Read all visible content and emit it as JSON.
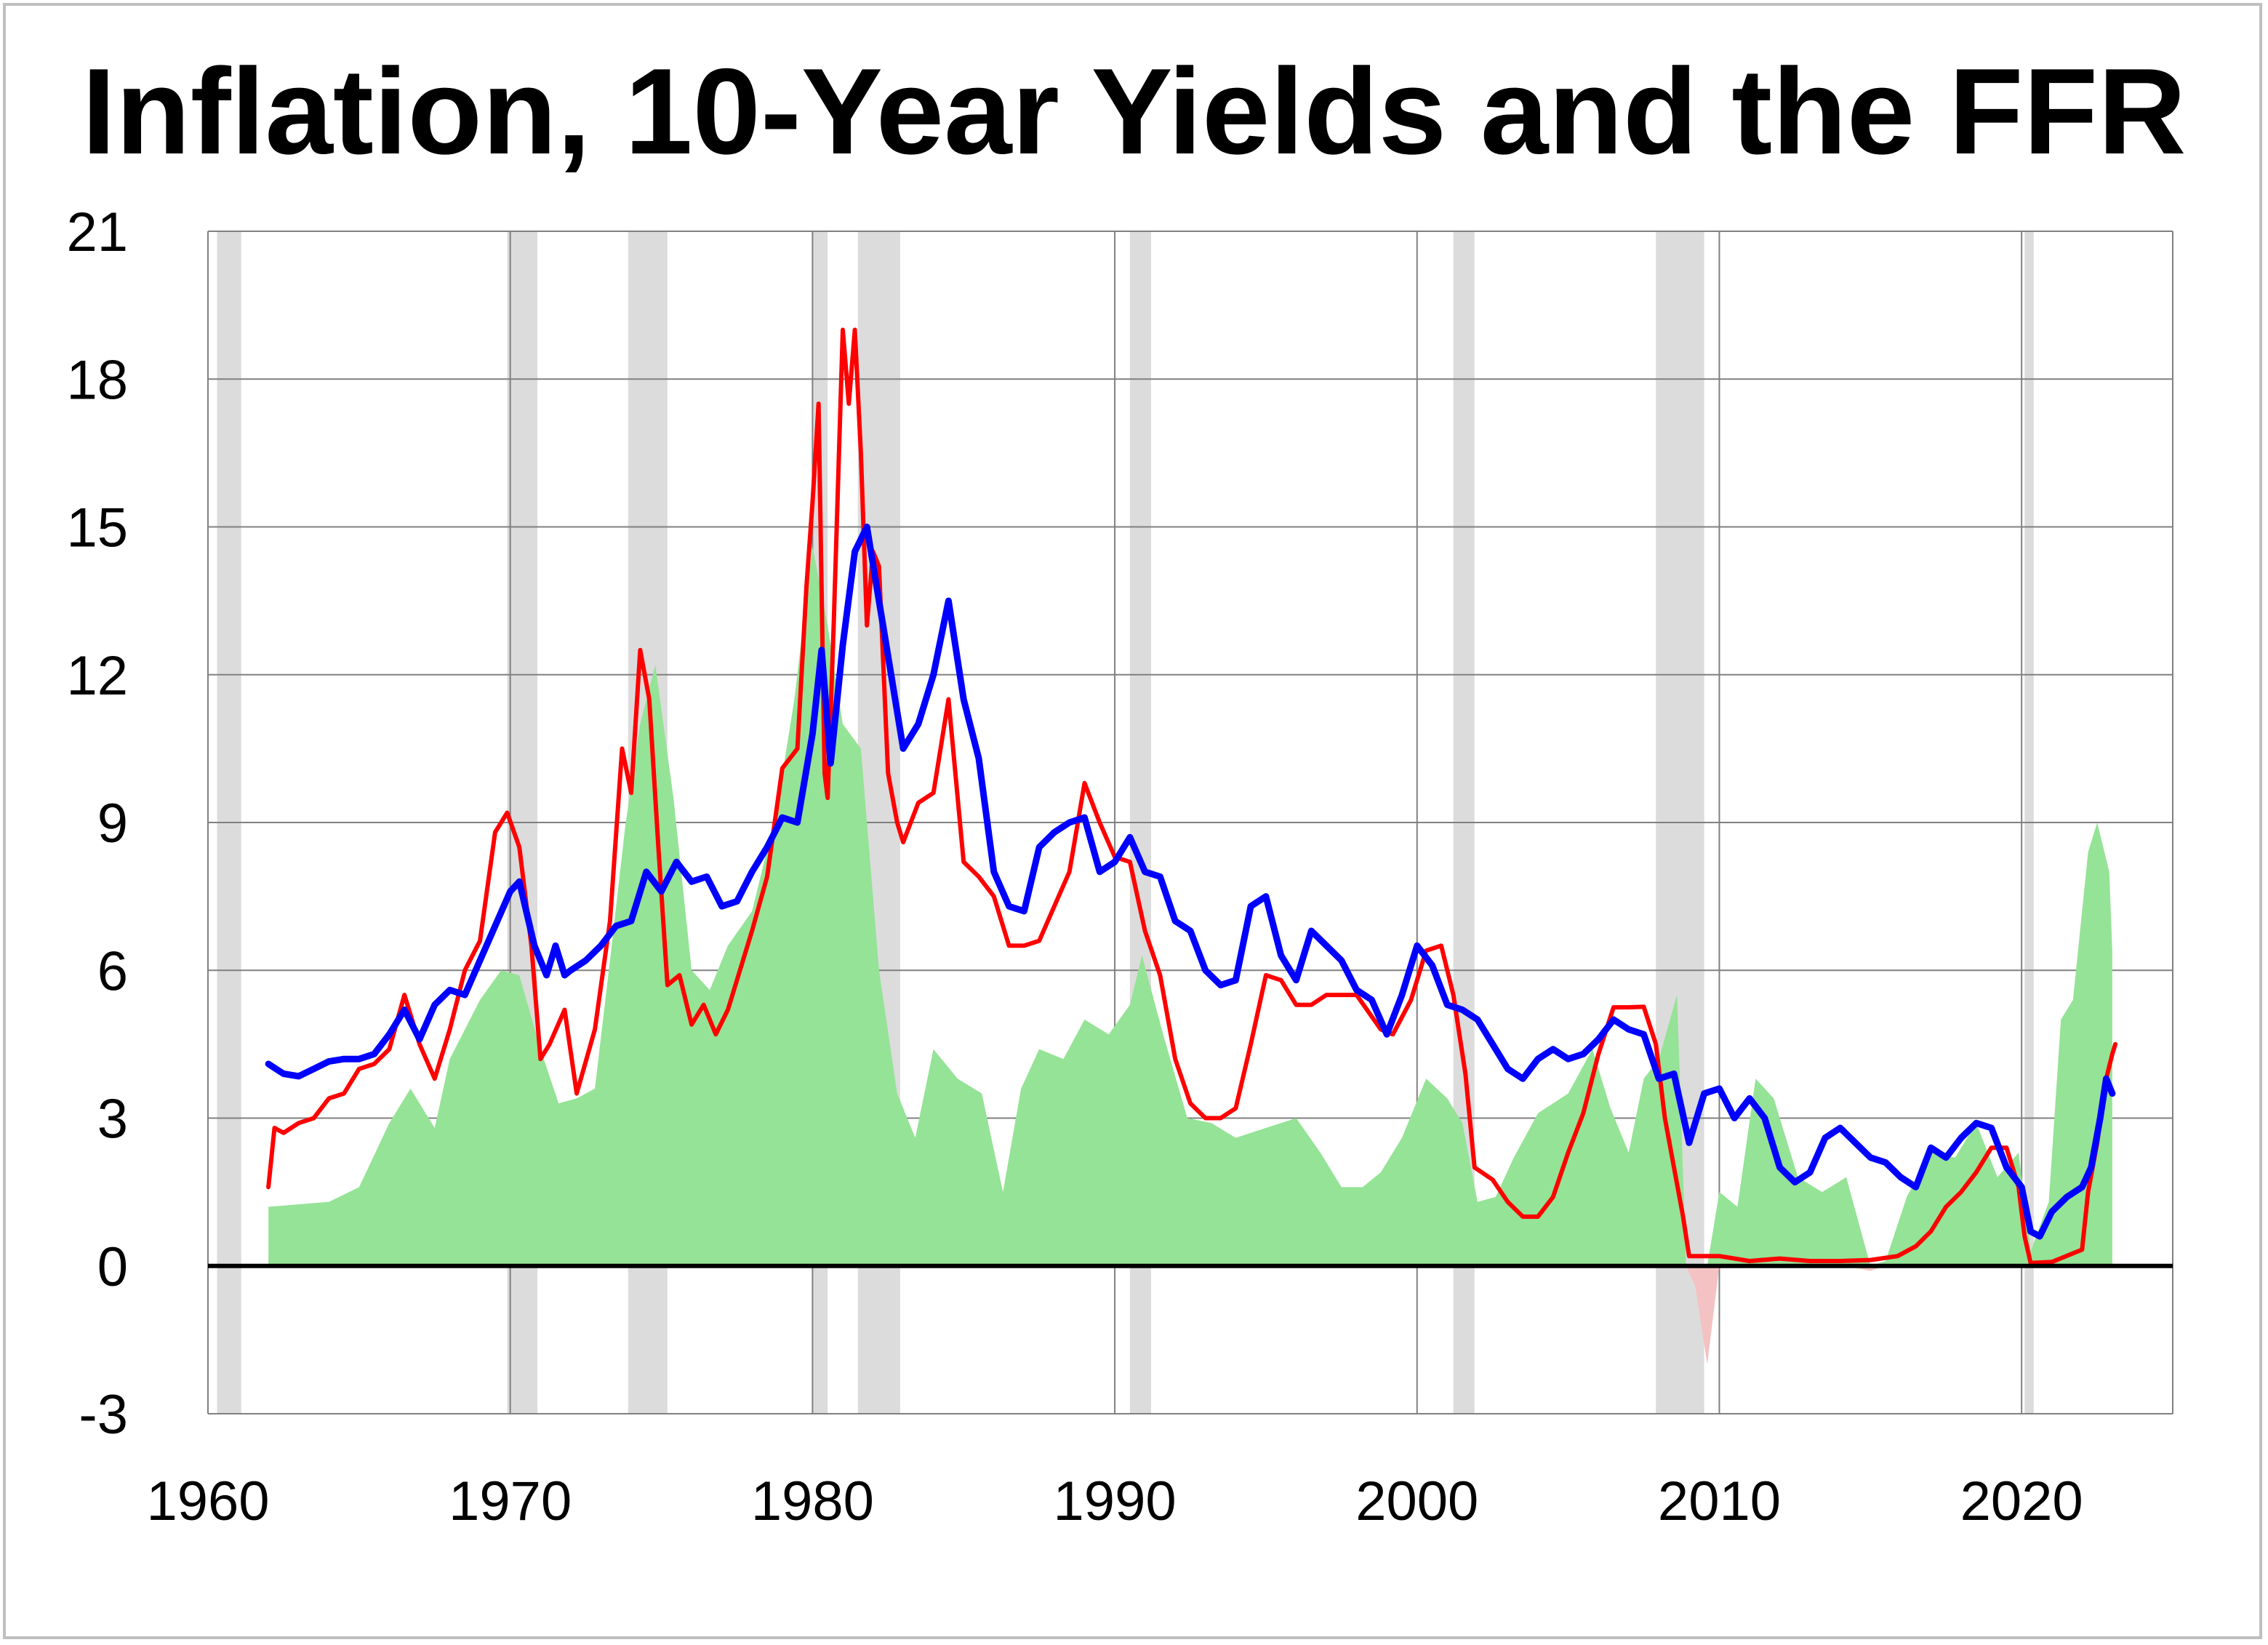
{
  "colors": {
    "inflation_area": "#95e396",
    "inflation_area_negative": "#f4c2c2",
    "ffr_line": "#ff0000",
    "yield_line": "#0000ff",
    "recession_band": "#dcdcdc",
    "gridline": "#808080",
    "zero_line": "#000000"
  },
  "chart_data": {
    "type": "line",
    "title": "Inflation, 10-Year Yields and the FFR",
    "xlabel": "",
    "ylabel": "",
    "xlim": [
      1960,
      2025
    ],
    "ylim": [
      -3,
      21
    ],
    "x_ticks": [
      1960,
      1970,
      1980,
      1990,
      2000,
      2010,
      2020
    ],
    "y_ticks": [
      -3,
      0,
      3,
      6,
      9,
      12,
      15,
      18,
      21
    ],
    "grid": true,
    "legend": "none",
    "recessions": [
      [
        1960.3,
        1961.1
      ],
      [
        1969.9,
        1970.9
      ],
      [
        1973.9,
        1975.2
      ],
      [
        1980.0,
        1980.5
      ],
      [
        1981.5,
        1982.9
      ],
      [
        1990.5,
        1991.2
      ],
      [
        2001.2,
        2001.9
      ],
      [
        2007.9,
        2009.5
      ],
      [
        2020.1,
        2020.4
      ]
    ],
    "series": [
      {
        "kind": "area",
        "color_key": "inflation_area",
        "x": [
          1962.0,
          1964.0,
          1965.0,
          1966.0,
          1966.7,
          1967.5,
          1968.0,
          1969.0,
          1969.7,
          1970.3,
          1971.0,
          1971.6,
          1972.2,
          1972.8,
          1973.3,
          1973.8,
          1974.3,
          1974.8,
          1975.4,
          1976.0,
          1976.6,
          1977.2,
          1978.0,
          1978.8,
          1979.4,
          1980.0,
          1980.5,
          1981.0,
          1981.6,
          1982.2,
          1982.8,
          1983.4,
          1984.0,
          1984.8,
          1985.6,
          1986.3,
          1986.9,
          1987.5,
          1988.3,
          1989.0,
          1989.8,
          1990.5,
          1990.9,
          1991.6,
          1992.4,
          1993.2,
          1994.0,
          1995.0,
          1996.0,
          1996.8,
          1997.5,
          1998.2,
          1998.8,
          1999.5,
          2000.3,
          2001.0,
          2001.5,
          2002.0,
          2002.6,
          2003.2,
          2004.0,
          2005.0,
          2005.8,
          2006.4,
          2007.0,
          2007.5,
          2008.0,
          2008.6,
          2008.9,
          2009.2,
          2009.6,
          2010.0,
          2010.6,
          2011.2,
          2011.8,
          2012.6,
          2013.4,
          2014.2,
          2015.0,
          2015.5,
          2016.2,
          2017.0,
          2017.8,
          2018.5,
          2019.2,
          2019.9,
          2020.3,
          2020.9,
          2021.3,
          2021.7,
          2022.2,
          2022.5,
          2022.9,
          2023.0
        ],
        "values": [
          1.2,
          1.3,
          1.6,
          2.9,
          3.6,
          2.8,
          4.2,
          5.4,
          6.0,
          5.9,
          4.4,
          3.3,
          3.4,
          3.6,
          6.2,
          8.9,
          11.0,
          12.2,
          9.5,
          6.0,
          5.6,
          6.5,
          7.2,
          9.2,
          11.5,
          14.6,
          13.0,
          11.0,
          10.5,
          6.0,
          3.5,
          2.6,
          4.4,
          3.8,
          3.5,
          1.5,
          3.6,
          4.4,
          4.2,
          5.0,
          4.7,
          5.3,
          6.3,
          4.7,
          3.0,
          2.9,
          2.6,
          2.8,
          3.0,
          2.3,
          1.6,
          1.6,
          1.9,
          2.6,
          3.8,
          3.4,
          2.9,
          1.3,
          1.4,
          2.2,
          3.1,
          3.5,
          4.4,
          3.2,
          2.3,
          3.8,
          4.2,
          5.5,
          0.0,
          -0.4,
          -2.0,
          1.5,
          1.2,
          3.8,
          3.4,
          1.8,
          1.5,
          1.8,
          -0.1,
          0.1,
          1.4,
          2.3,
          2.2,
          2.9,
          1.8,
          2.3,
          0.3,
          1.3,
          5.0,
          5.4,
          8.4,
          9.0,
          8.0,
          6.4
        ]
      },
      {
        "kind": "line",
        "color_key": "ffr_line",
        "x": [
          1962.0,
          1962.2,
          1962.5,
          1963.0,
          1963.5,
          1964.0,
          1964.5,
          1965.0,
          1965.5,
          1966.0,
          1966.5,
          1967.0,
          1967.5,
          1968.0,
          1968.5,
          1969.0,
          1969.5,
          1969.9,
          1970.3,
          1970.7,
          1971.0,
          1971.3,
          1971.8,
          1972.2,
          1972.8,
          1973.3,
          1973.7,
          1974.0,
          1974.3,
          1974.6,
          1974.9,
          1975.2,
          1975.6,
          1976.0,
          1976.4,
          1976.8,
          1977.2,
          1977.6,
          1978.0,
          1978.5,
          1979.0,
          1979.5,
          1979.8,
          1980.0,
          1980.2,
          1980.4,
          1980.5,
          1980.7,
          1981.0,
          1981.2,
          1981.4,
          1981.6,
          1981.8,
          1982.0,
          1982.2,
          1982.5,
          1982.8,
          1983.0,
          1983.5,
          1984.0,
          1984.5,
          1985.0,
          1985.5,
          1986.0,
          1986.5,
          1987.0,
          1987.5,
          1988.0,
          1988.5,
          1989.0,
          1989.5,
          1990.0,
          1990.5,
          1991.0,
          1991.5,
          1992.0,
          1992.5,
          1993.0,
          1993.5,
          1994.0,
          1994.5,
          1995.0,
          1995.5,
          1996.0,
          1996.5,
          1997.0,
          1998.0,
          1998.8,
          1999.2,
          1999.8,
          2000.3,
          2000.8,
          2001.2,
          2001.6,
          2001.9,
          2002.5,
          2003.0,
          2003.5,
          2004.0,
          2004.5,
          2005.0,
          2005.5,
          2006.0,
          2006.5,
          2007.0,
          2007.5,
          2007.9,
          2008.2,
          2008.5,
          2008.8,
          2009.0,
          2010.0,
          2011.0,
          2012.0,
          2013.0,
          2014.0,
          2015.0,
          2015.9,
          2016.5,
          2017.0,
          2017.5,
          2018.0,
          2018.5,
          2019.0,
          2019.5,
          2019.9,
          2020.1,
          2020.3,
          2021.0,
          2022.0,
          2022.2,
          2022.5,
          2022.8,
          2023.0,
          2023.1
        ],
        "values": [
          1.6,
          2.8,
          2.7,
          2.9,
          3.0,
          3.4,
          3.5,
          4.0,
          4.1,
          4.4,
          5.5,
          4.5,
          3.8,
          4.8,
          6.0,
          6.6,
          8.8,
          9.2,
          8.5,
          6.5,
          4.2,
          4.5,
          5.2,
          3.5,
          4.8,
          7.0,
          10.5,
          9.6,
          12.5,
          11.5,
          8.5,
          5.7,
          5.9,
          4.9,
          5.3,
          4.7,
          5.2,
          6.0,
          6.8,
          7.9,
          10.1,
          10.5,
          13.8,
          15.5,
          17.5,
          10.0,
          9.5,
          13.0,
          19.0,
          17.5,
          19.0,
          16.5,
          13.0,
          14.5,
          14.2,
          10.0,
          9.0,
          8.6,
          9.4,
          9.6,
          11.5,
          8.2,
          7.9,
          7.5,
          6.5,
          6.5,
          6.6,
          7.3,
          8.0,
          9.8,
          9.0,
          8.3,
          8.2,
          6.8,
          5.9,
          4.2,
          3.3,
          3.0,
          3.0,
          3.2,
          4.5,
          5.9,
          5.8,
          5.3,
          5.3,
          5.5,
          5.5,
          4.8,
          4.7,
          5.4,
          6.4,
          6.5,
          5.5,
          3.9,
          2.0,
          1.75,
          1.3,
          1.0,
          1.0,
          1.4,
          2.3,
          3.1,
          4.3,
          5.25,
          5.25,
          5.26,
          4.5,
          3.0,
          2.0,
          1.0,
          0.2,
          0.2,
          0.1,
          0.15,
          0.1,
          0.1,
          0.12,
          0.2,
          0.4,
          0.7,
          1.2,
          1.5,
          1.9,
          2.4,
          2.4,
          1.6,
          0.6,
          0.06,
          0.08,
          0.33,
          1.5,
          2.5,
          3.8,
          4.3,
          4.5
        ]
      },
      {
        "kind": "line",
        "color_key": "yield_line",
        "x": [
          1962.0,
          1962.5,
          1963.0,
          1963.5,
          1964.0,
          1964.5,
          1965.0,
          1965.5,
          1966.0,
          1966.5,
          1967.0,
          1967.5,
          1968.0,
          1968.5,
          1969.0,
          1969.5,
          1970.0,
          1970.3,
          1970.8,
          1971.2,
          1971.5,
          1971.8,
          1972.0,
          1972.5,
          1973.0,
          1973.5,
          1974.0,
          1974.5,
          1975.0,
          1975.5,
          1976.0,
          1976.5,
          1977.0,
          1977.5,
          1978.0,
          1978.5,
          1979.0,
          1979.5,
          1980.0,
          1980.3,
          1980.6,
          1981.0,
          1981.4,
          1981.8,
          1982.2,
          1982.6,
          1983.0,
          1983.5,
          1984.0,
          1984.5,
          1985.0,
          1985.5,
          1986.0,
          1986.5,
          1987.0,
          1987.5,
          1988.0,
          1988.5,
          1989.0,
          1989.5,
          1990.0,
          1990.5,
          1991.0,
          1991.5,
          1992.0,
          1992.5,
          1993.0,
          1993.5,
          1994.0,
          1994.5,
          1995.0,
          1995.5,
          1996.0,
          1996.5,
          1997.0,
          1997.5,
          1998.0,
          1998.5,
          1999.0,
          1999.5,
          2000.0,
          2000.5,
          2001.0,
          2001.5,
          2002.0,
          2002.5,
          2003.0,
          2003.5,
          2004.0,
          2004.5,
          2005.0,
          2005.5,
          2006.0,
          2006.5,
          2007.0,
          2007.5,
          2008.0,
          2008.5,
          2009.0,
          2009.5,
          2010.0,
          2010.5,
          2011.0,
          2011.5,
          2012.0,
          2012.5,
          2013.0,
          2013.5,
          2014.0,
          2014.5,
          2015.0,
          2015.5,
          2016.0,
          2016.5,
          2017.0,
          2017.5,
          2018.0,
          2018.5,
          2019.0,
          2019.5,
          2020.0,
          2020.3,
          2020.6,
          2021.0,
          2021.5,
          2022.0,
          2022.3,
          2022.6,
          2022.8,
          2023.0
        ],
        "values": [
          4.1,
          3.9,
          3.85,
          4.0,
          4.15,
          4.2,
          4.2,
          4.3,
          4.7,
          5.2,
          4.6,
          5.3,
          5.6,
          5.5,
          6.2,
          6.9,
          7.6,
          7.8,
          6.5,
          5.9,
          6.5,
          5.9,
          6.0,
          6.2,
          6.5,
          6.9,
          7.0,
          8.0,
          7.6,
          8.2,
          7.8,
          7.9,
          7.3,
          7.4,
          8.0,
          8.5,
          9.1,
          9.0,
          10.8,
          12.5,
          10.2,
          12.6,
          14.5,
          15.0,
          13.5,
          12.0,
          10.5,
          11.0,
          12.0,
          13.5,
          11.5,
          10.3,
          8.0,
          7.3,
          7.2,
          8.5,
          8.8,
          9.0,
          9.1,
          8.0,
          8.2,
          8.7,
          8.0,
          7.9,
          7.0,
          6.8,
          6.0,
          5.7,
          5.8,
          7.3,
          7.5,
          6.3,
          5.8,
          6.8,
          6.5,
          6.2,
          5.6,
          5.4,
          4.7,
          5.5,
          6.5,
          6.1,
          5.3,
          5.2,
          5.0,
          4.5,
          4.0,
          3.8,
          4.2,
          4.4,
          4.2,
          4.3,
          4.6,
          5.0,
          4.8,
          4.7,
          3.8,
          3.9,
          2.5,
          3.5,
          3.6,
          3.0,
          3.4,
          3.0,
          2.0,
          1.7,
          1.9,
          2.6,
          2.8,
          2.5,
          2.2,
          2.1,
          1.8,
          1.6,
          2.4,
          2.2,
          2.6,
          2.9,
          2.8,
          2.0,
          1.6,
          0.7,
          0.6,
          1.1,
          1.4,
          1.6,
          2.0,
          3.0,
          3.8,
          3.5
        ]
      }
    ]
  }
}
